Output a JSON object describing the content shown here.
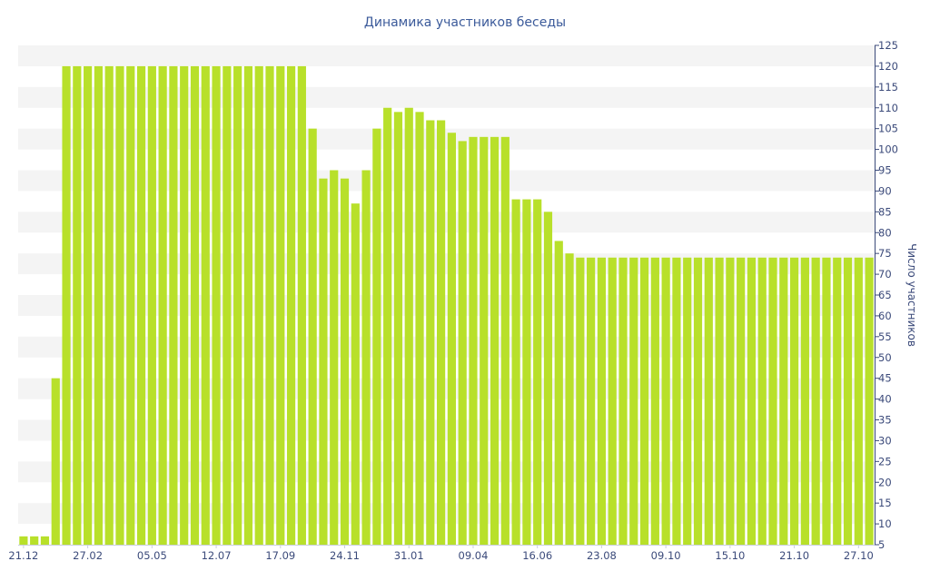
{
  "chart_data": {
    "type": "bar",
    "title": "Динамика участников беседы",
    "ylabel": "Число участников",
    "ylim": [
      5,
      125
    ],
    "ytick_step": 5,
    "y_axis_side": "right",
    "grid": "horizontal bands",
    "colors": {
      "bar": "#b8e02a",
      "band": "#f4f4f4",
      "axis_text": "#3b4a7a",
      "title": "#3b5a9a"
    },
    "x_tick_labels": [
      {
        "index": 0,
        "label": "21.12"
      },
      {
        "index": 6,
        "label": "27.02"
      },
      {
        "index": 12,
        "label": "05.05"
      },
      {
        "index": 18,
        "label": "12.07"
      },
      {
        "index": 24,
        "label": "17.09"
      },
      {
        "index": 30,
        "label": "24.11"
      },
      {
        "index": 36,
        "label": "31.01"
      },
      {
        "index": 42,
        "label": "09.04"
      },
      {
        "index": 48,
        "label": "16.06"
      },
      {
        "index": 54,
        "label": "23.08"
      },
      {
        "index": 60,
        "label": "09.10"
      },
      {
        "index": 66,
        "label": "15.10"
      },
      {
        "index": 72,
        "label": "21.10"
      },
      {
        "index": 78,
        "label": "27.10"
      }
    ],
    "values": [
      7,
      7,
      7,
      45,
      120,
      120,
      120,
      120,
      120,
      120,
      120,
      120,
      120,
      120,
      120,
      120,
      120,
      120,
      120,
      120,
      120,
      120,
      120,
      120,
      120,
      120,
      120,
      105,
      93,
      95,
      93,
      87,
      95,
      105,
      110,
      109,
      110,
      109,
      107,
      107,
      104,
      102,
      103,
      103,
      103,
      103,
      88,
      88,
      88,
      85,
      78,
      75,
      74,
      74,
      74,
      74,
      74,
      74,
      74,
      74,
      74,
      74,
      74,
      74,
      74,
      74,
      74,
      74,
      74,
      74,
      74,
      74,
      74,
      74,
      74,
      74,
      74,
      74,
      74,
      74
    ]
  }
}
